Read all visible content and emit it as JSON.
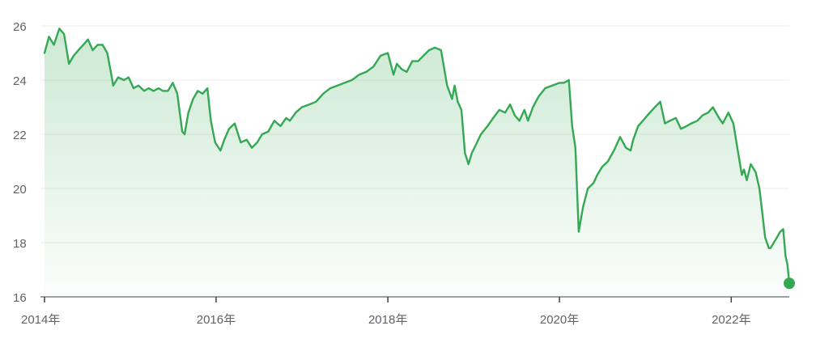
{
  "chart_data": {
    "type": "area",
    "title": "",
    "xlabel": "",
    "ylabel": "",
    "ylim": [
      16,
      26
    ],
    "xlim": [
      "2014-01-01",
      "2022-09-05"
    ],
    "y_ticks": [
      16,
      18,
      20,
      22,
      24,
      26
    ],
    "y_tick_labels": [
      "16",
      "18",
      "20",
      "22",
      "24",
      "26"
    ],
    "x_ticks": [
      "2014-01-01",
      "2016-01-01",
      "2018-01-01",
      "2020-01-01",
      "2022-01-01"
    ],
    "x_tick_labels": [
      "2014年",
      "2016年",
      "2018年",
      "2020年",
      "2022年"
    ],
    "grid": true,
    "legend": "none",
    "colors": {
      "line": "#34a853",
      "fill_top": "#34a853",
      "grid": "#ebebeb",
      "axis": "#5f6368",
      "baseline": "#3c4043"
    },
    "series": [
      {
        "x": [
          "2014-01-01",
          "2014-01-20",
          "2014-02-10",
          "2014-03-05",
          "2014-03-25",
          "2014-04-15",
          "2014-05-05",
          "2014-05-25",
          "2014-06-15",
          "2014-07-05",
          "2014-07-25",
          "2014-08-15",
          "2014-09-05",
          "2014-09-25",
          "2014-10-10",
          "2014-10-20",
          "2014-11-10",
          "2014-12-05",
          "2014-12-25",
          "2015-01-15",
          "2015-02-05",
          "2015-03-01",
          "2015-03-20",
          "2015-04-10",
          "2015-05-01",
          "2015-05-20",
          "2015-06-10",
          "2015-07-01",
          "2015-07-20",
          "2015-08-10",
          "2015-08-20",
          "2015-09-05",
          "2015-09-25",
          "2015-10-15",
          "2015-11-05",
          "2015-11-25",
          "2015-12-10",
          "2015-12-28",
          "2016-01-20",
          "2016-02-05",
          "2016-02-25",
          "2016-03-20",
          "2016-04-15",
          "2016-05-10",
          "2016-06-01",
          "2016-06-24",
          "2016-07-15",
          "2016-08-10",
          "2016-09-05",
          "2016-10-01",
          "2016-10-25",
          "2016-11-10",
          "2016-12-05",
          "2016-12-31",
          "2017-02-01",
          "2017-03-01",
          "2017-04-01",
          "2017-05-01",
          "2017-06-01",
          "2017-07-01",
          "2017-08-01",
          "2017-09-01",
          "2017-10-01",
          "2017-11-01",
          "2017-12-01",
          "2018-01-01",
          "2018-01-25",
          "2018-02-08",
          "2018-03-01",
          "2018-03-22",
          "2018-04-15",
          "2018-05-10",
          "2018-06-01",
          "2018-06-25",
          "2018-07-20",
          "2018-08-15",
          "2018-09-10",
          "2018-10-01",
          "2018-10-12",
          "2018-10-25",
          "2018-11-10",
          "2018-11-25",
          "2018-12-10",
          "2018-12-24",
          "2019-01-10",
          "2019-02-01",
          "2019-03-01",
          "2019-03-25",
          "2019-04-20",
          "2019-05-15",
          "2019-06-05",
          "2019-06-25",
          "2019-07-15",
          "2019-08-05",
          "2019-08-20",
          "2019-09-10",
          "2019-10-05",
          "2019-11-01",
          "2019-12-01",
          "2020-01-02",
          "2020-01-20",
          "2020-02-10",
          "2020-02-24",
          "2020-03-09",
          "2020-03-23",
          "2020-04-10",
          "2020-05-01",
          "2020-05-25",
          "2020-06-10",
          "2020-07-01",
          "2020-07-25",
          "2020-08-20",
          "2020-09-15",
          "2020-10-10",
          "2020-10-30",
          "2020-11-10",
          "2020-12-01",
          "2020-12-31",
          "2021-01-20",
          "2021-02-10",
          "2021-03-05",
          "2021-03-25",
          "2021-04-15",
          "2021-05-10",
          "2021-06-01",
          "2021-06-25",
          "2021-07-15",
          "2021-08-10",
          "2021-09-01",
          "2021-09-25",
          "2021-10-15",
          "2021-11-10",
          "2021-11-26",
          "2021-12-20",
          "2022-01-10",
          "2022-01-27",
          "2022-02-15",
          "2022-02-24",
          "2022-03-08",
          "2022-03-25",
          "2022-04-15",
          "2022-05-01",
          "2022-05-12",
          "2022-05-25",
          "2022-06-10",
          "2022-06-17",
          "2022-07-01",
          "2022-07-15",
          "2022-07-28",
          "2022-08-10",
          "2022-08-20",
          "2022-08-28",
          "2022-09-05"
        ],
        "y": [
          25.0,
          25.6,
          25.3,
          25.9,
          25.7,
          24.6,
          24.9,
          25.1,
          25.3,
          25.5,
          25.1,
          25.3,
          25.3,
          25.0,
          24.3,
          23.8,
          24.1,
          24.0,
          24.1,
          23.7,
          23.8,
          23.6,
          23.7,
          23.6,
          23.7,
          23.6,
          23.6,
          23.9,
          23.5,
          22.1,
          22.0,
          22.8,
          23.3,
          23.6,
          23.5,
          23.7,
          22.5,
          21.7,
          21.4,
          21.8,
          22.2,
          22.4,
          21.7,
          21.8,
          21.5,
          21.7,
          22.0,
          22.1,
          22.5,
          22.3,
          22.6,
          22.5,
          22.8,
          23.0,
          23.1,
          23.2,
          23.5,
          23.7,
          23.8,
          23.9,
          24.0,
          24.2,
          24.3,
          24.5,
          24.9,
          25.0,
          24.2,
          24.6,
          24.4,
          24.3,
          24.7,
          24.7,
          24.9,
          25.1,
          25.2,
          25.1,
          23.8,
          23.3,
          23.8,
          23.2,
          22.9,
          21.3,
          20.9,
          21.3,
          21.6,
          22.0,
          22.3,
          22.6,
          22.9,
          22.8,
          23.1,
          22.7,
          22.5,
          22.9,
          22.5,
          23.0,
          23.4,
          23.7,
          23.8,
          23.9,
          23.9,
          24.0,
          22.3,
          21.5,
          18.4,
          19.3,
          20.0,
          20.2,
          20.5,
          20.8,
          21.0,
          21.4,
          21.9,
          21.5,
          21.4,
          21.8,
          22.3,
          22.6,
          22.8,
          23.0,
          23.2,
          22.4,
          22.5,
          22.6,
          22.2,
          22.3,
          22.4,
          22.5,
          22.7,
          22.8,
          23.0,
          22.6,
          22.4,
          22.8,
          22.4,
          21.5,
          20.5,
          20.7,
          20.3,
          20.9,
          20.6,
          20.0,
          19.2,
          18.2,
          17.8,
          17.8,
          18.0,
          18.2,
          18.4,
          18.5,
          17.5,
          17.2,
          16.5
        ]
      }
    ],
    "last_point": {
      "x": "2022-09-05",
      "y": 16.5
    }
  }
}
